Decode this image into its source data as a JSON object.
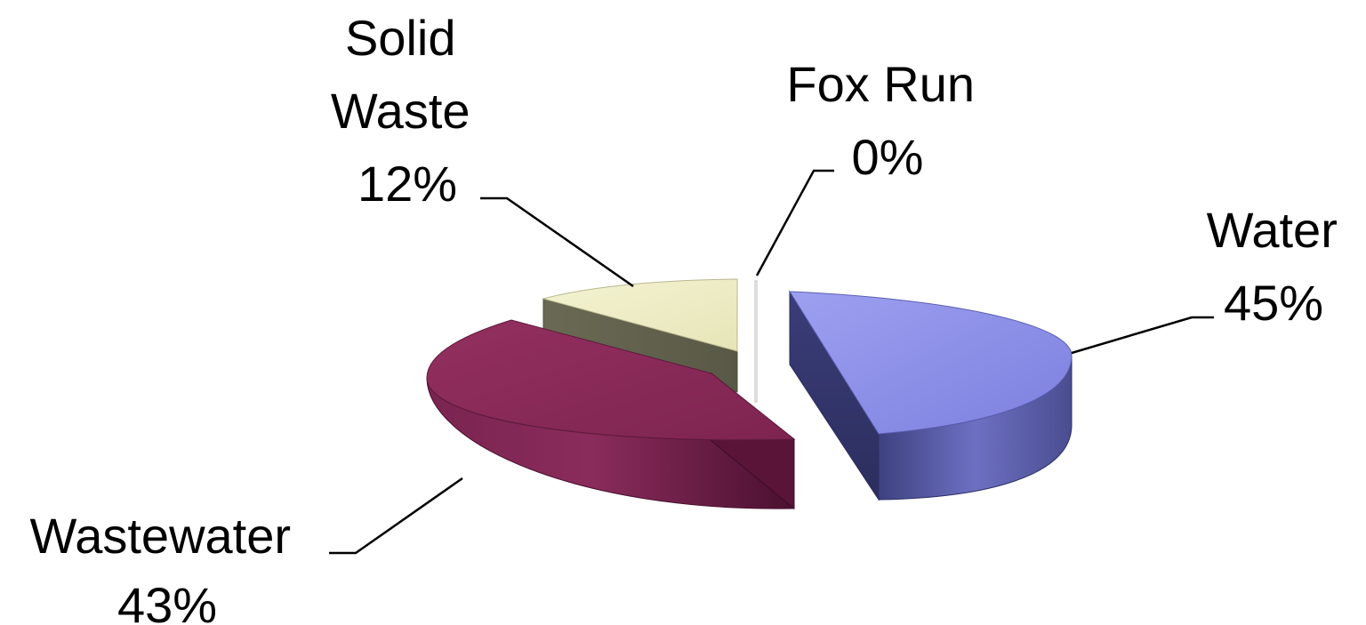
{
  "chart_data": {
    "type": "pie",
    "variant": "3d-exploded",
    "title": "",
    "slices": [
      {
        "label": "Water",
        "value": 45,
        "value_label": "45%",
        "color": "#8b8ee8",
        "side_color": "#4f5296"
      },
      {
        "label": "Wastewater",
        "value": 43,
        "value_label": "43%",
        "color": "#8c2a5a",
        "side_color": "#6e1c44"
      },
      {
        "label": "Solid Waste",
        "value": 12,
        "value_label": "12%",
        "color": "#efeec4",
        "side_color": "#7a7a62"
      },
      {
        "label": "Fox Run",
        "value": 0,
        "value_label": "0%",
        "color": "#ffffff",
        "side_color": "#dddddd"
      }
    ],
    "legend": "none"
  }
}
